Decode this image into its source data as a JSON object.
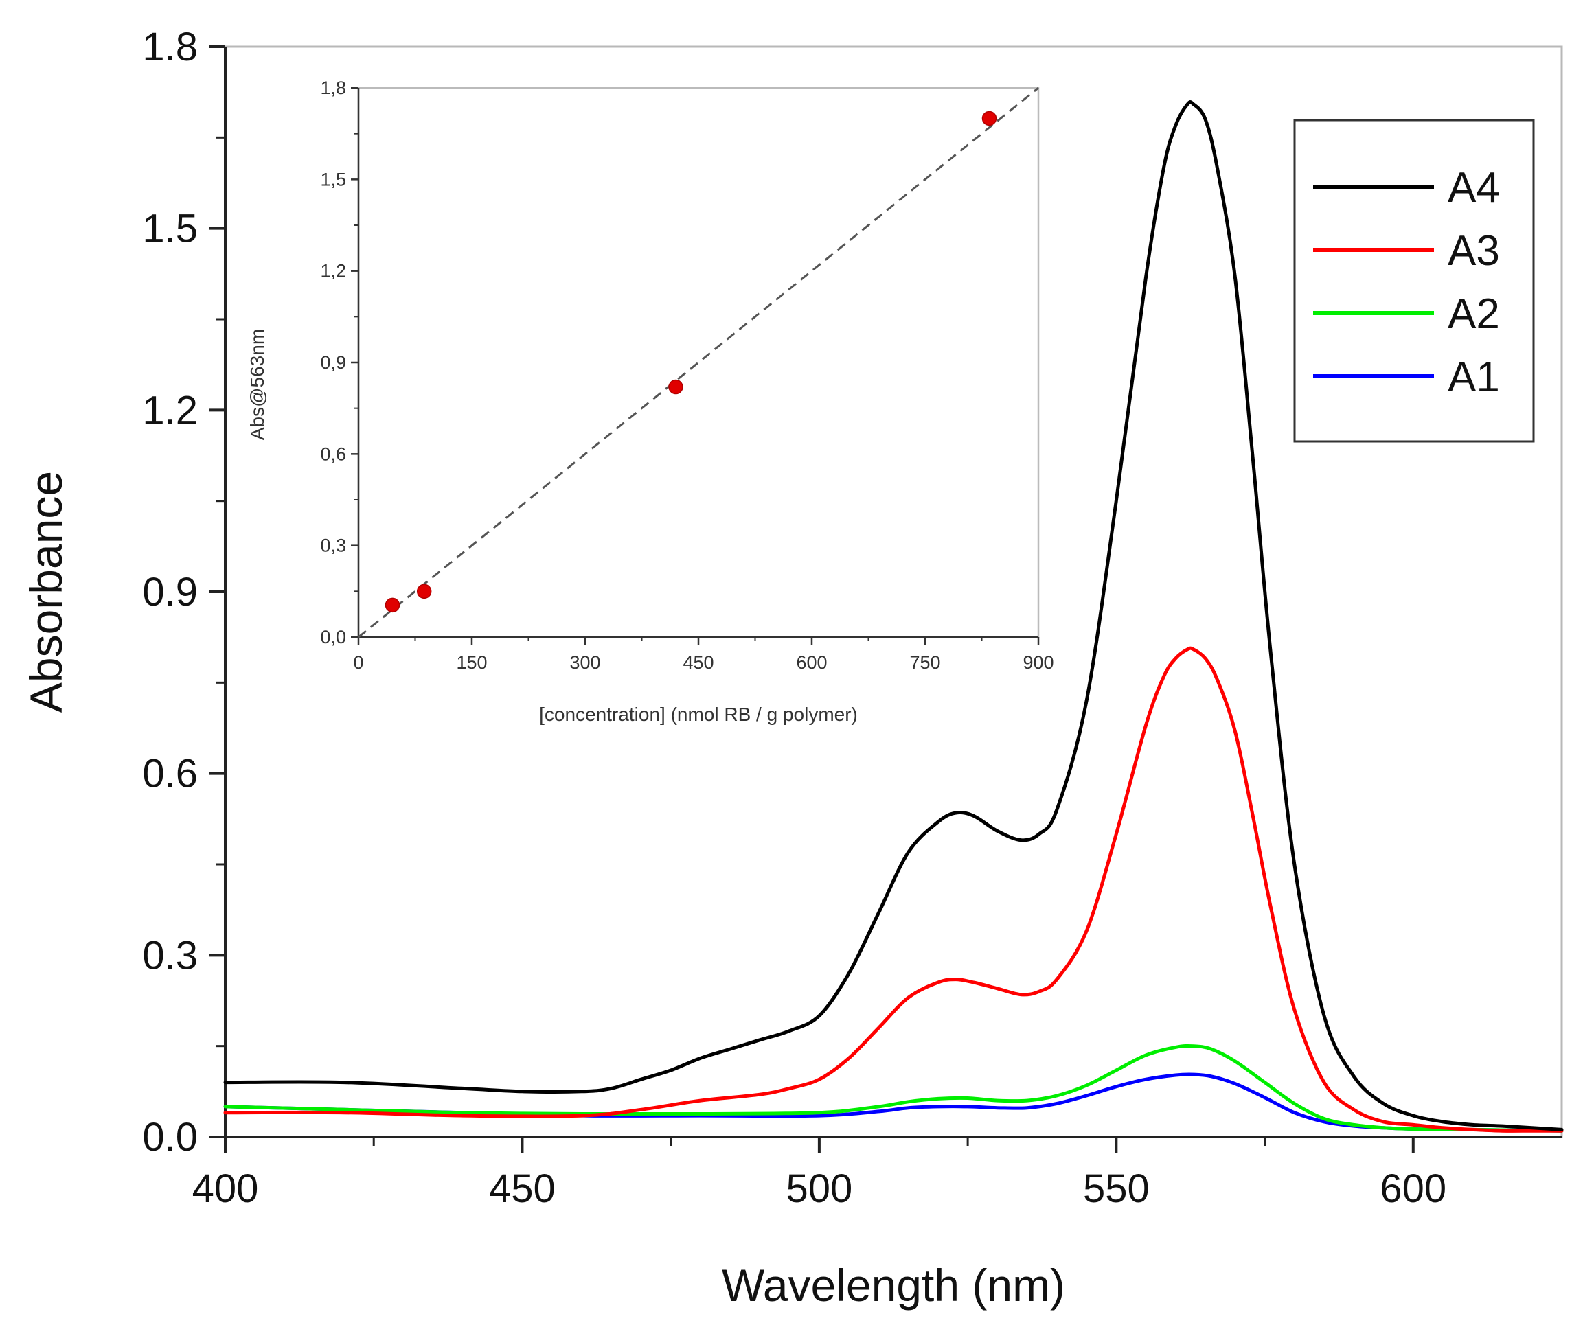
{
  "chart_data": [
    {
      "id": "main",
      "type": "line",
      "title": "",
      "xlabel": "Wavelength (nm)",
      "ylabel": "Absorbance",
      "xlim": [
        400,
        625
      ],
      "ylim": [
        0.0,
        1.8
      ],
      "xticks": [
        400,
        450,
        500,
        550,
        600
      ],
      "yticks": [
        0.0,
        0.3,
        0.6,
        0.9,
        1.2,
        1.5,
        1.8
      ],
      "xtick_labels": [
        "400",
        "450",
        "500",
        "550",
        "600"
      ],
      "ytick_labels": [
        "0.0",
        "0.3",
        "0.6",
        "0.9",
        "1.2",
        "1.5",
        "1.8"
      ],
      "grid": false,
      "legend_position": "top-right",
      "series": [
        {
          "name": "A4",
          "color": "#000000",
          "x": [
            400,
            420,
            440,
            450,
            460,
            465,
            470,
            475,
            480,
            485,
            490,
            495,
            500,
            505,
            510,
            515,
            520,
            523,
            526,
            530,
            534,
            537,
            540,
            545,
            550,
            555,
            558,
            560,
            562,
            563,
            565,
            567,
            570,
            573,
            576,
            580,
            585,
            590,
            595,
            600,
            605,
            610,
            615,
            620,
            625
          ],
          "y": [
            0.09,
            0.09,
            0.08,
            0.075,
            0.075,
            0.08,
            0.095,
            0.11,
            0.13,
            0.145,
            0.16,
            0.175,
            0.2,
            0.27,
            0.37,
            0.47,
            0.52,
            0.535,
            0.53,
            0.505,
            0.49,
            0.5,
            0.54,
            0.72,
            1.05,
            1.42,
            1.6,
            1.67,
            1.705,
            1.705,
            1.68,
            1.6,
            1.42,
            1.12,
            0.8,
            0.45,
            0.2,
            0.1,
            0.055,
            0.035,
            0.025,
            0.02,
            0.018,
            0.015,
            0.012
          ]
        },
        {
          "name": "A3",
          "color": "#ff0000",
          "x": [
            400,
            420,
            440,
            460,
            470,
            480,
            490,
            495,
            500,
            505,
            510,
            515,
            520,
            523,
            526,
            530,
            534,
            537,
            540,
            545,
            550,
            555,
            558,
            560,
            562,
            563,
            565,
            567,
            570,
            573,
            576,
            580,
            585,
            590,
            595,
            600,
            605,
            610,
            615,
            620,
            625
          ],
          "y": [
            0.04,
            0.04,
            0.035,
            0.035,
            0.045,
            0.06,
            0.07,
            0.08,
            0.095,
            0.13,
            0.18,
            0.23,
            0.255,
            0.26,
            0.255,
            0.245,
            0.235,
            0.24,
            0.26,
            0.34,
            0.5,
            0.68,
            0.76,
            0.79,
            0.805,
            0.805,
            0.79,
            0.755,
            0.67,
            0.53,
            0.38,
            0.21,
            0.09,
            0.045,
            0.025,
            0.02,
            0.015,
            0.012,
            0.01,
            0.01,
            0.01
          ]
        },
        {
          "name": "A2",
          "color": "#00ee00",
          "x": [
            400,
            420,
            440,
            460,
            480,
            500,
            510,
            515,
            520,
            525,
            530,
            535,
            540,
            545,
            550,
            555,
            560,
            563,
            566,
            570,
            575,
            580,
            585,
            590,
            595,
            600,
            610,
            625
          ],
          "y": [
            0.05,
            0.045,
            0.04,
            0.038,
            0.038,
            0.04,
            0.05,
            0.058,
            0.063,
            0.064,
            0.06,
            0.06,
            0.068,
            0.085,
            0.11,
            0.135,
            0.148,
            0.15,
            0.145,
            0.125,
            0.09,
            0.055,
            0.03,
            0.02,
            0.015,
            0.013,
            0.012,
            0.01
          ]
        },
        {
          "name": "A1",
          "color": "#0000ff",
          "x": [
            400,
            420,
            440,
            460,
            480,
            500,
            510,
            515,
            520,
            525,
            530,
            535,
            540,
            545,
            550,
            555,
            560,
            563,
            566,
            570,
            575,
            580,
            585,
            590,
            595,
            600,
            610,
            625
          ],
          "y": [
            0.05,
            0.045,
            0.04,
            0.035,
            0.035,
            0.035,
            0.042,
            0.048,
            0.05,
            0.05,
            0.048,
            0.048,
            0.055,
            0.068,
            0.083,
            0.095,
            0.102,
            0.103,
            0.1,
            0.088,
            0.065,
            0.04,
            0.025,
            0.018,
            0.015,
            0.013,
            0.012,
            0.01
          ]
        }
      ]
    },
    {
      "id": "inset",
      "type": "scatter",
      "title": "",
      "xlabel": "[concentration] (nmol RB / g polymer)",
      "ylabel": "Abs@563nm",
      "xlim": [
        0,
        900
      ],
      "ylim": [
        0.0,
        1.8
      ],
      "xticks": [
        0,
        150,
        300,
        450,
        600,
        750,
        900
      ],
      "yticks": [
        0.0,
        0.3,
        0.6,
        0.9,
        1.2,
        1.5,
        1.8
      ],
      "xtick_labels": [
        "0",
        "150",
        "300",
        "450",
        "600",
        "750",
        "900"
      ],
      "ytick_labels": [
        "0,0",
        "0,3",
        "0,6",
        "0,9",
        "1,2",
        "1,5",
        "1,8"
      ],
      "grid": false,
      "points": {
        "x": [
          45,
          87,
          420,
          835
        ],
        "y": [
          0.105,
          0.15,
          0.82,
          1.7
        ],
        "color": "#e00000"
      },
      "fit_line": {
        "style": "dashed",
        "color": "#555555",
        "x": [
          0,
          900
        ],
        "y": [
          0.0,
          1.8
        ]
      }
    }
  ]
}
